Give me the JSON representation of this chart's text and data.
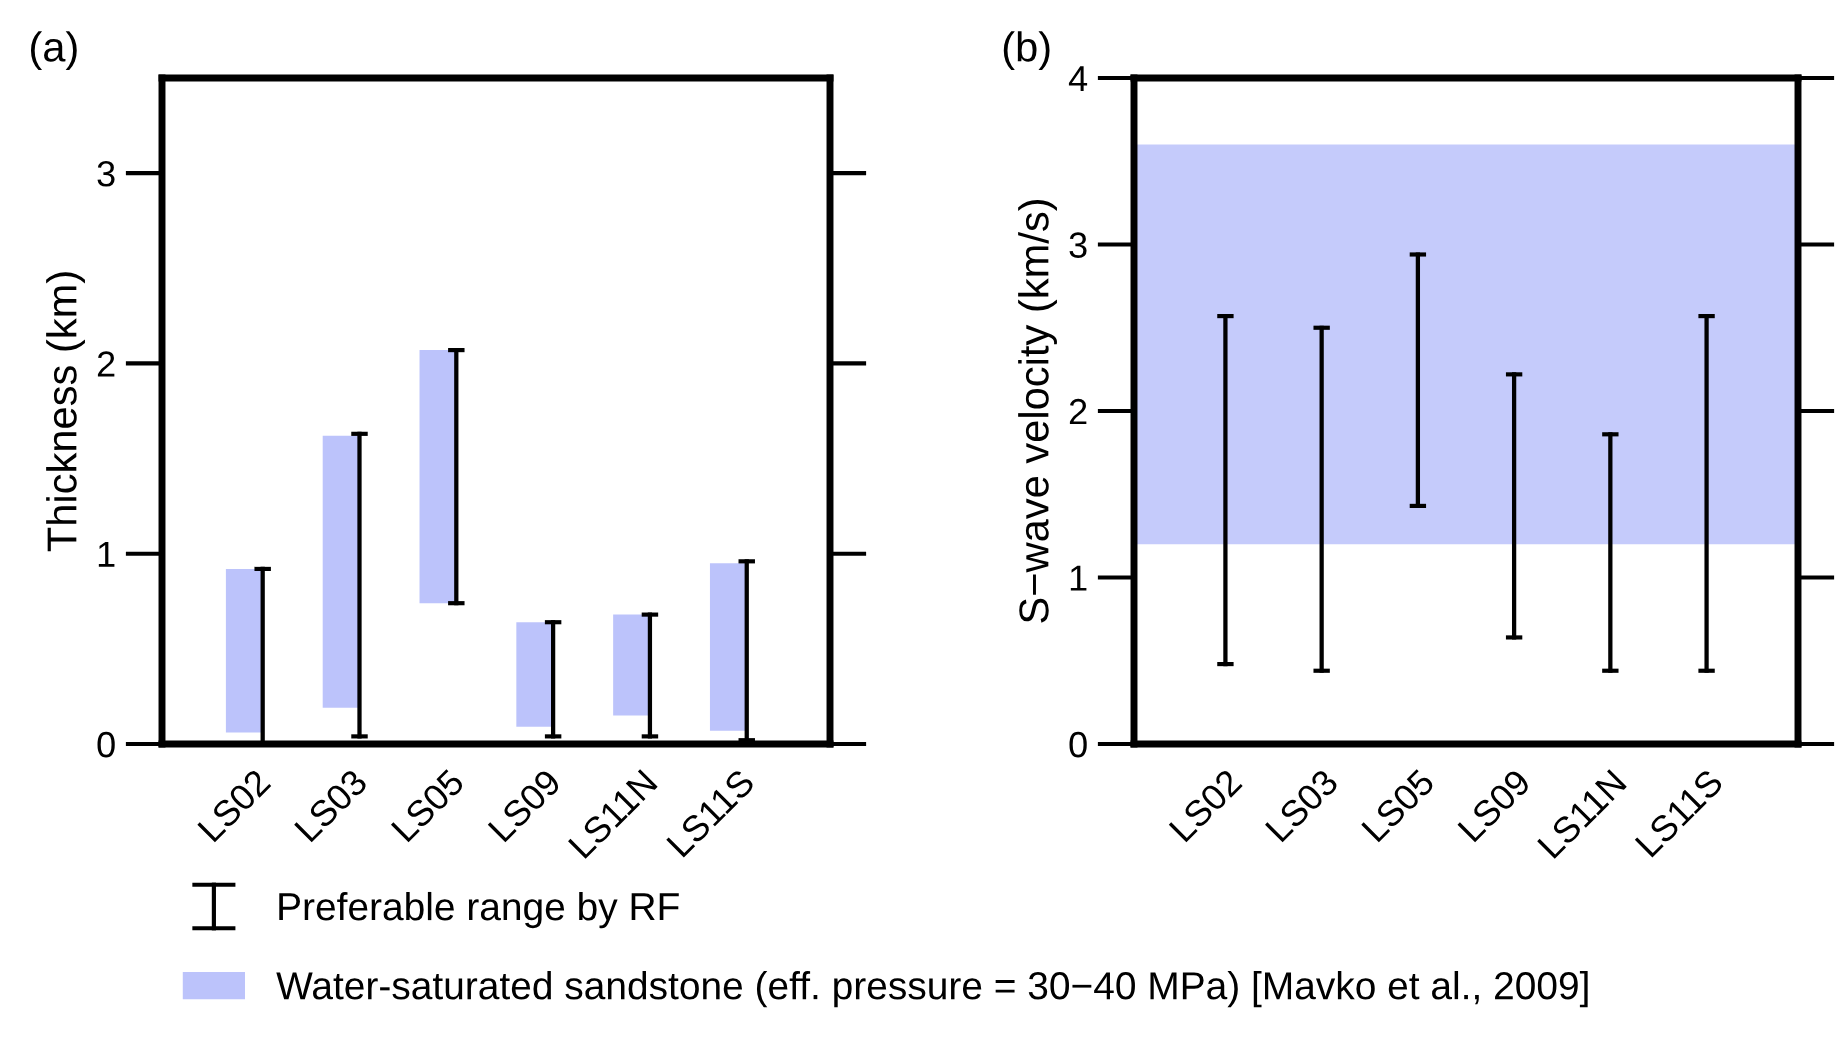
{
  "chart_data": [
    {
      "type": "bar",
      "title": "(a)",
      "ylabel": "Thickness (km)",
      "categories": [
        "LS02",
        "LS03",
        "LS05",
        "LS09",
        "LS11N",
        "LS11S"
      ],
      "ylim": [
        0,
        3.5
      ],
      "yticks": [
        0,
        1,
        2,
        3
      ],
      "grid": false,
      "legend": "bottom",
      "series": [
        {
          "name": "Preferable range by RF",
          "type": "bar",
          "line_style": "solid",
          "color": "#000000",
          "base": [
            0,
            0.04,
            0.74,
            0.04,
            0.04,
            0.02
          ],
          "values": [
            0.92,
            1.59,
            1.33,
            0.6,
            0.64,
            0.94
          ]
        },
        {
          "name": "Water-saturated sandstone (eff. pressure = 30−40 MPa) [Mavko et al., 2009]",
          "type": "bar",
          "color": "#bcc3fb",
          "base": [
            0.06,
            0.19,
            0.74,
            0.09,
            0.15,
            0.07
          ],
          "values": [
            0.86,
            1.43,
            1.33,
            0.55,
            0.53,
            0.88
          ]
        }
      ]
    },
    {
      "type": "bar",
      "title": "(b)",
      "ylabel": "S−wave velocity (km/s)",
      "categories": [
        "LS02",
        "LS03",
        "LS05",
        "LS09",
        "LS11N",
        "LS11S"
      ],
      "ylim": [
        0,
        4
      ],
      "yticks": [
        0,
        1,
        2,
        3,
        4
      ],
      "grid": false,
      "bands": [
        {
          "axis": "y",
          "from": 1.2,
          "to": 3.6,
          "color": "#c5cbfb"
        }
      ],
      "series": [
        {
          "color": "#000000",
          "line_style": "solid",
          "base": [
            0.48,
            0.44,
            1.43,
            0.64,
            0.44,
            0.44
          ],
          "values": [
            2.09,
            2.06,
            1.51,
            1.58,
            1.42,
            2.13
          ]
        }
      ]
    }
  ]
}
